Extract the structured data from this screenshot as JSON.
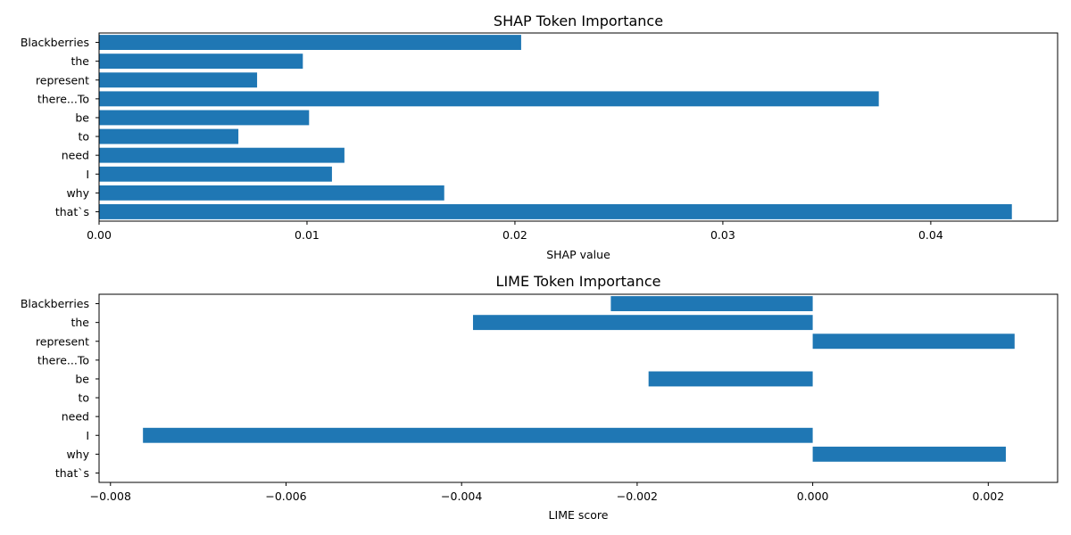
{
  "chart_data": [
    {
      "type": "bar",
      "orientation": "horizontal",
      "title": "SHAP Token Importance",
      "xlabel": "SHAP value",
      "ylabel": "",
      "categories": [
        "Blackberries",
        "the",
        "represent",
        "there...To",
        "be",
        "to",
        "need",
        "I",
        "why",
        "that`s"
      ],
      "values": [
        0.0203,
        0.0098,
        0.0076,
        0.0375,
        0.0101,
        0.0067,
        0.0118,
        0.0112,
        0.0166,
        0.0439
      ],
      "xlim": [
        0.0,
        0.0461
      ],
      "xticks": [
        0.0,
        0.01,
        0.02,
        0.03,
        0.04
      ],
      "xtick_labels": [
        "0.00",
        "0.01",
        "0.02",
        "0.03",
        "0.04"
      ],
      "bar_color": "#1f77b4",
      "grid": false
    },
    {
      "type": "bar",
      "orientation": "horizontal",
      "title": "LIME Token Importance",
      "xlabel": "LIME score",
      "ylabel": "",
      "categories": [
        "Blackberries",
        "the",
        "represent",
        "there...To",
        "be",
        "to",
        "need",
        "I",
        "why",
        "that`s"
      ],
      "values": [
        -0.0023,
        -0.00387,
        0.0023,
        0.0,
        -0.00187,
        0.0,
        0.0,
        -0.00763,
        0.0022,
        0.0
      ],
      "xlim": [
        -0.00813,
        0.00279
      ],
      "xticks": [
        -0.008,
        -0.006,
        -0.004,
        -0.002,
        0.0,
        0.002
      ],
      "xtick_labels": [
        "−0.008",
        "−0.006",
        "−0.004",
        "−0.002",
        "0.000",
        "0.002"
      ],
      "bar_color": "#1f77b4",
      "grid": false
    }
  ]
}
